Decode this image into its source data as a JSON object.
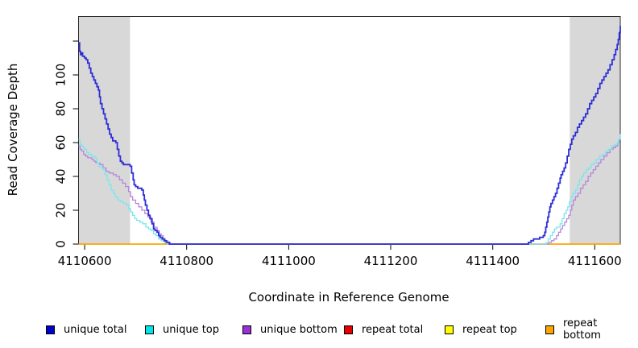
{
  "chart_data": {
    "type": "line",
    "title": "",
    "xlabel": "Coordinate in Reference Genome",
    "ylabel": "Read Coverage Depth",
    "xlim": [
      4110588,
      4111650
    ],
    "ylim": [
      0,
      134.5
    ],
    "grid": false,
    "step_interpolation": "step-after",
    "legend_position": "bottom",
    "x_ticks": [
      {
        "v": 4110600,
        "label": "4110600"
      },
      {
        "v": 4110800,
        "label": "4110800"
      },
      {
        "v": 4111000,
        "label": "4111000"
      },
      {
        "v": 4111200,
        "label": "4111200"
      },
      {
        "v": 4111400,
        "label": "4111400"
      },
      {
        "v": 4111600,
        "label": "4111600"
      }
    ],
    "y_ticks": [
      {
        "v": 0,
        "label": "0"
      },
      {
        "v": 20,
        "label": "20"
      },
      {
        "v": 40,
        "label": "40"
      },
      {
        "v": 60,
        "label": "60"
      },
      {
        "v": 80,
        "label": "80"
      },
      {
        "v": 100,
        "label": "100"
      },
      {
        "v": 120,
        "label": ""
      }
    ],
    "shaded_regions": [
      {
        "from": 4110588,
        "to": 4110689,
        "color": "#d8d8d8"
      },
      {
        "from": 4111551,
        "to": 4111650,
        "color": "#d8d8d8"
      }
    ],
    "series": [
      {
        "id": "repeat-total",
        "name": "repeat total",
        "color": "#e60000",
        "width": 1.3,
        "points": [
          [
            4110588,
            0
          ],
          [
            4111650,
            0
          ]
        ]
      },
      {
        "id": "repeat-top",
        "name": "repeat top",
        "color": "#ffff00",
        "width": 1.3,
        "points": [
          [
            4110588,
            0
          ],
          [
            4111650,
            0
          ]
        ]
      },
      {
        "id": "repeat-bottom",
        "name": "repeat bottom",
        "color": "#ffa500",
        "width": 1.4,
        "points": [
          [
            4110588,
            0
          ],
          [
            4111650,
            0
          ]
        ]
      },
      {
        "id": "unique-bottom",
        "name": "unique bottom",
        "color": "#b786dd",
        "width": 1.3,
        "points": [
          [
            4110588,
            58
          ],
          [
            4110591,
            56
          ],
          [
            4110594,
            55
          ],
          [
            4110598,
            53
          ],
          [
            4110602,
            52
          ],
          [
            4110606,
            51
          ],
          [
            4110614,
            50
          ],
          [
            4110618,
            49
          ],
          [
            4110622,
            48
          ],
          [
            4110630,
            47
          ],
          [
            4110636,
            45
          ],
          [
            4110642,
            43
          ],
          [
            4110648,
            42
          ],
          [
            4110656,
            41
          ],
          [
            4110662,
            40
          ],
          [
            4110668,
            38
          ],
          [
            4110674,
            36
          ],
          [
            4110680,
            34
          ],
          [
            4110686,
            31
          ],
          [
            4110690,
            28
          ],
          [
            4110694,
            26
          ],
          [
            4110700,
            24
          ],
          [
            4110706,
            22
          ],
          [
            4110712,
            20
          ],
          [
            4110718,
            18
          ],
          [
            4110724,
            16
          ],
          [
            4110730,
            13
          ],
          [
            4110736,
            10
          ],
          [
            4110742,
            8
          ],
          [
            4110746,
            6
          ],
          [
            4110750,
            5
          ],
          [
            4110754,
            3
          ],
          [
            4110758,
            2
          ],
          [
            4110763,
            1
          ],
          [
            4110768,
            0
          ],
          [
            4111510,
            1
          ],
          [
            4111515,
            2
          ],
          [
            4111520,
            3
          ],
          [
            4111525,
            5
          ],
          [
            4111529,
            7
          ],
          [
            4111533,
            9
          ],
          [
            4111537,
            11
          ],
          [
            4111541,
            13
          ],
          [
            4111545,
            15
          ],
          [
            4111549,
            17
          ],
          [
            4111552,
            20
          ],
          [
            4111555,
            23
          ],
          [
            4111558,
            26
          ],
          [
            4111562,
            28
          ],
          [
            4111567,
            30
          ],
          [
            4111572,
            33
          ],
          [
            4111577,
            35
          ],
          [
            4111582,
            37
          ],
          [
            4111587,
            40
          ],
          [
            4111592,
            42
          ],
          [
            4111597,
            44
          ],
          [
            4111602,
            46
          ],
          [
            4111607,
            48
          ],
          [
            4111612,
            50
          ],
          [
            4111618,
            52
          ],
          [
            4111624,
            54
          ],
          [
            4111630,
            56
          ],
          [
            4111636,
            57
          ],
          [
            4111641,
            58
          ],
          [
            4111645,
            60
          ],
          [
            4111648,
            62
          ],
          [
            4111650,
            64
          ]
        ]
      },
      {
        "id": "unique-top",
        "name": "unique top",
        "color": "#79e7ee",
        "width": 1.3,
        "points": [
          [
            4110588,
            62
          ],
          [
            4110591,
            59
          ],
          [
            4110594,
            58
          ],
          [
            4110597,
            57
          ],
          [
            4110600,
            56
          ],
          [
            4110604,
            54
          ],
          [
            4110608,
            53
          ],
          [
            4110613,
            52
          ],
          [
            4110620,
            51
          ],
          [
            4110624,
            48
          ],
          [
            4110628,
            46
          ],
          [
            4110632,
            45
          ],
          [
            4110636,
            44
          ],
          [
            4110640,
            41
          ],
          [
            4110644,
            38
          ],
          [
            4110648,
            35
          ],
          [
            4110652,
            32
          ],
          [
            4110656,
            30
          ],
          [
            4110660,
            28
          ],
          [
            4110665,
            26
          ],
          [
            4110670,
            25
          ],
          [
            4110676,
            24
          ],
          [
            4110682,
            23
          ],
          [
            4110686,
            21
          ],
          [
            4110690,
            19
          ],
          [
            4110694,
            17
          ],
          [
            4110698,
            15
          ],
          [
            4110702,
            14
          ],
          [
            4110708,
            13
          ],
          [
            4110714,
            12
          ],
          [
            4110720,
            10
          ],
          [
            4110725,
            9
          ],
          [
            4110730,
            8
          ],
          [
            4110735,
            6
          ],
          [
            4110740,
            5
          ],
          [
            4110745,
            3
          ],
          [
            4110750,
            2
          ],
          [
            4110756,
            1
          ],
          [
            4110762,
            0
          ],
          [
            4111505,
            1
          ],
          [
            4111509,
            3
          ],
          [
            4111513,
            5
          ],
          [
            4111517,
            7
          ],
          [
            4111521,
            9
          ],
          [
            4111525,
            10
          ],
          [
            4111532,
            12
          ],
          [
            4111536,
            15
          ],
          [
            4111540,
            18
          ],
          [
            4111544,
            20
          ],
          [
            4111547,
            22
          ],
          [
            4111550,
            25
          ],
          [
            4111553,
            28
          ],
          [
            4111557,
            30
          ],
          [
            4111562,
            32
          ],
          [
            4111566,
            35
          ],
          [
            4111570,
            38
          ],
          [
            4111574,
            40
          ],
          [
            4111578,
            42
          ],
          [
            4111583,
            44
          ],
          [
            4111588,
            45
          ],
          [
            4111593,
            47
          ],
          [
            4111598,
            48
          ],
          [
            4111603,
            50
          ],
          [
            4111609,
            52
          ],
          [
            4111615,
            53
          ],
          [
            4111621,
            55
          ],
          [
            4111627,
            56
          ],
          [
            4111633,
            58
          ],
          [
            4111639,
            59
          ],
          [
            4111644,
            60
          ],
          [
            4111647,
            62
          ],
          [
            4111650,
            65
          ]
        ]
      },
      {
        "id": "unique-total",
        "name": "unique total",
        "color": "#2d2dd6",
        "width": 1.8,
        "points": [
          [
            4110588,
            119
          ],
          [
            4110590,
            114
          ],
          [
            4110592,
            112
          ],
          [
            4110594,
            113
          ],
          [
            4110596,
            111
          ],
          [
            4110600,
            110
          ],
          [
            4110603,
            109
          ],
          [
            4110606,
            107
          ],
          [
            4110609,
            104
          ],
          [
            4110612,
            101
          ],
          [
            4110615,
            99
          ],
          [
            4110618,
            97
          ],
          [
            4110621,
            95
          ],
          [
            4110624,
            93
          ],
          [
            4110627,
            91
          ],
          [
            4110629,
            87
          ],
          [
            4110631,
            83
          ],
          [
            4110634,
            80
          ],
          [
            4110637,
            77
          ],
          [
            4110640,
            74
          ],
          [
            4110643,
            71
          ],
          [
            4110646,
            68
          ],
          [
            4110649,
            65
          ],
          [
            4110652,
            63
          ],
          [
            4110655,
            61
          ],
          [
            4110661,
            60
          ],
          [
            4110664,
            56
          ],
          [
            4110667,
            52
          ],
          [
            4110670,
            49
          ],
          [
            4110673,
            48
          ],
          [
            4110676,
            47
          ],
          [
            4110689,
            46
          ],
          [
            4110692,
            42
          ],
          [
            4110695,
            38
          ],
          [
            4110697,
            35
          ],
          [
            4110700,
            34
          ],
          [
            4110704,
            33
          ],
          [
            4110712,
            32
          ],
          [
            4110715,
            29
          ],
          [
            4110717,
            26
          ],
          [
            4110719,
            23
          ],
          [
            4110722,
            20
          ],
          [
            4110725,
            17
          ],
          [
            4110728,
            15
          ],
          [
            4110732,
            12
          ],
          [
            4110735,
            9
          ],
          [
            4110738,
            8
          ],
          [
            4110742,
            7
          ],
          [
            4110745,
            5
          ],
          [
            4110748,
            4
          ],
          [
            4110752,
            3
          ],
          [
            4110756,
            2
          ],
          [
            4110760,
            1
          ],
          [
            4110766,
            0
          ],
          [
            4111470,
            1
          ],
          [
            4111475,
            2
          ],
          [
            4111480,
            3
          ],
          [
            4111492,
            4
          ],
          [
            4111499,
            5
          ],
          [
            4111502,
            7
          ],
          [
            4111504,
            10
          ],
          [
            4111506,
            13
          ],
          [
            4111508,
            16
          ],
          [
            4111510,
            19
          ],
          [
            4111512,
            22
          ],
          [
            4111514,
            24
          ],
          [
            4111517,
            26
          ],
          [
            4111520,
            28
          ],
          [
            4111523,
            30
          ],
          [
            4111526,
            33
          ],
          [
            4111529,
            36
          ],
          [
            4111532,
            39
          ],
          [
            4111534,
            41
          ],
          [
            4111537,
            43
          ],
          [
            4111540,
            45
          ],
          [
            4111543,
            48
          ],
          [
            4111546,
            52
          ],
          [
            4111549,
            56
          ],
          [
            4111552,
            59
          ],
          [
            4111555,
            62
          ],
          [
            4111558,
            64
          ],
          [
            4111562,
            66
          ],
          [
            4111566,
            69
          ],
          [
            4111570,
            71
          ],
          [
            4111574,
            73
          ],
          [
            4111578,
            75
          ],
          [
            4111582,
            77
          ],
          [
            4111586,
            80
          ],
          [
            4111590,
            83
          ],
          [
            4111594,
            85
          ],
          [
            4111598,
            87
          ],
          [
            4111602,
            89
          ],
          [
            4111606,
            92
          ],
          [
            4111610,
            95
          ],
          [
            4111614,
            97
          ],
          [
            4111618,
            99
          ],
          [
            4111622,
            101
          ],
          [
            4111626,
            103
          ],
          [
            4111630,
            106
          ],
          [
            4111634,
            109
          ],
          [
            4111638,
            112
          ],
          [
            4111641,
            115
          ],
          [
            4111644,
            118
          ],
          [
            4111646,
            121
          ],
          [
            4111648,
            125
          ],
          [
            4111650,
            129
          ]
        ]
      }
    ]
  },
  "legend": {
    "items": [
      {
        "label": "unique total",
        "swatch": "#0000cc"
      },
      {
        "label": "unique top",
        "swatch": "#00e6ed"
      },
      {
        "label": "unique bottom",
        "swatch": "#9b30d9"
      },
      {
        "label": "repeat total",
        "swatch": "#e60000"
      },
      {
        "label": "repeat top",
        "swatch": "#ffff00"
      },
      {
        "label": "repeat bottom",
        "swatch": "#ffa500"
      }
    ]
  }
}
